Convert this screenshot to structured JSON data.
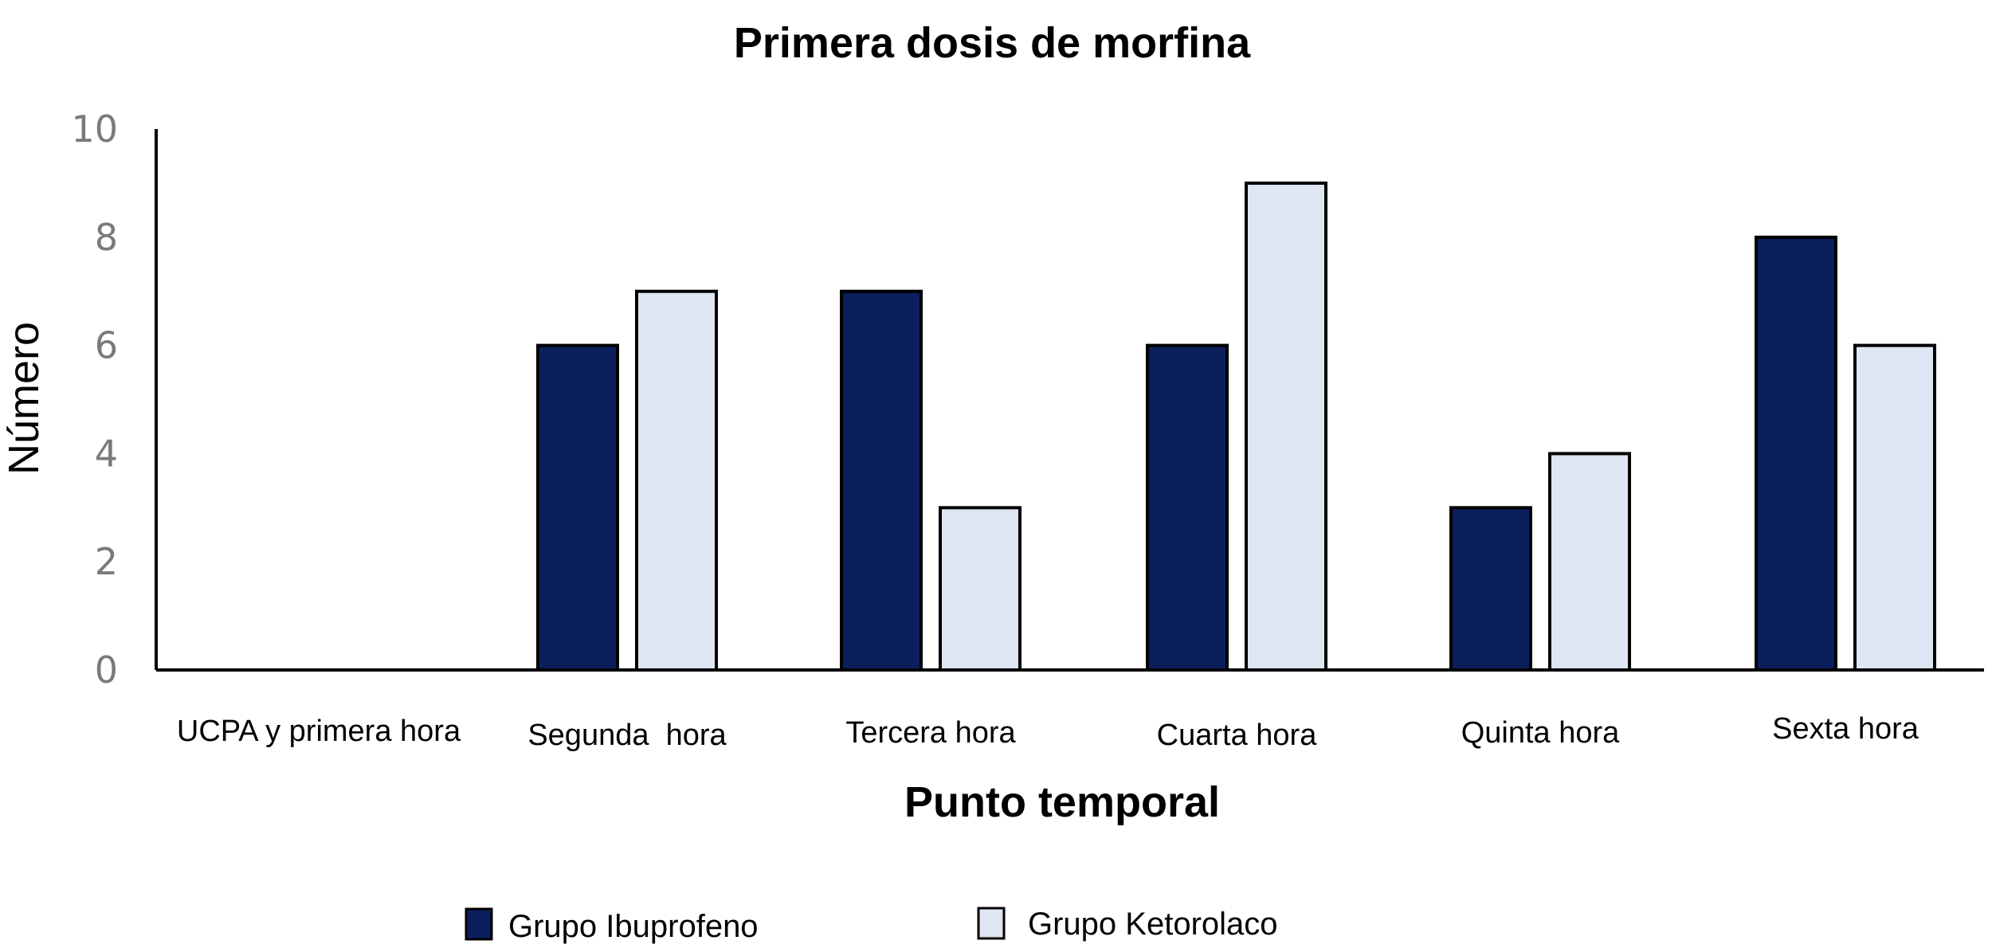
{
  "chart_data": {
    "type": "bar",
    "title": "Primera dosis de morfina",
    "xlabel": "Punto temporal",
    "ylabel": "Número",
    "ylim": [
      0,
      10
    ],
    "yticks": [
      "0",
      "2",
      "4",
      "6",
      "8",
      "10"
    ],
    "categories": [
      "UCPA y primera hora",
      "Segunda  hora",
      "Tercera hora",
      "Cuarta hora",
      "Quinta hora",
      "Sexta hora"
    ],
    "series": [
      {
        "name": "Grupo Ibuprofeno",
        "color": "#0b1f5c",
        "values": [
          0,
          6,
          7,
          6,
          3,
          8
        ]
      },
      {
        "name": "Grupo Ketorolaco",
        "color": "#dde6f2",
        "values": [
          0,
          7,
          3,
          9,
          4,
          6
        ]
      }
    ],
    "grid": false,
    "legend": "bottom"
  }
}
